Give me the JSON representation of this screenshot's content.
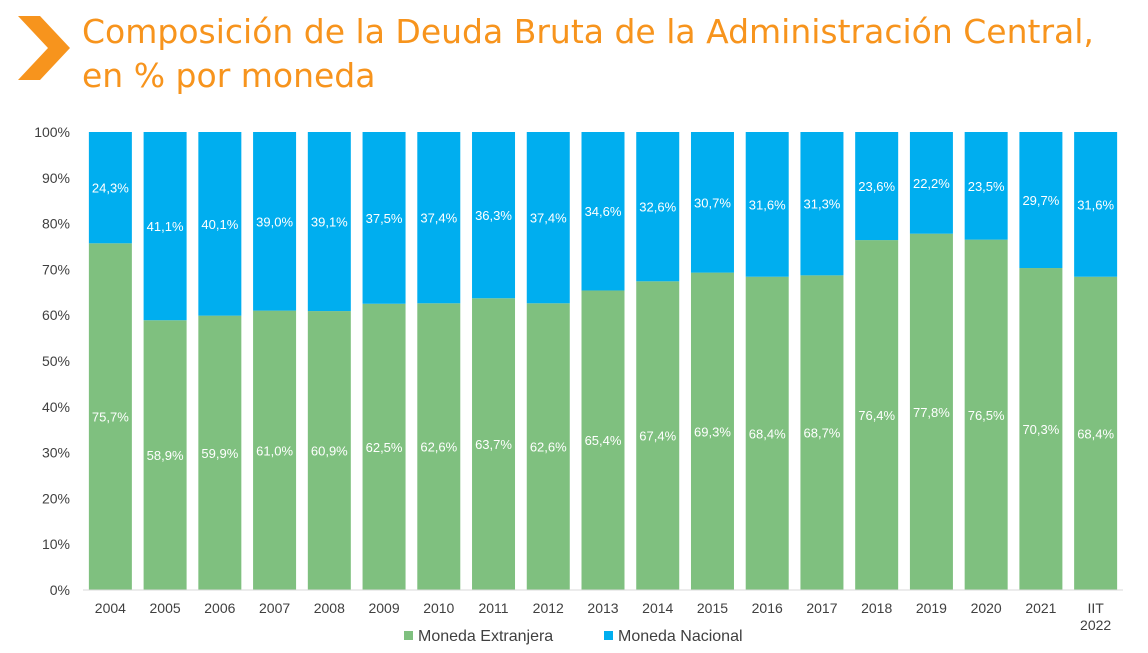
{
  "title": "Composición de la Deuda Bruta de la Administración Central, en % por moneda",
  "icons": {
    "header": "chevron-right-icon"
  },
  "colors": {
    "accent": "#f7941d",
    "extranjera": "#7fc07f",
    "nacional": "#00aeef",
    "text": "#404040"
  },
  "chart_data": {
    "type": "bar",
    "stacked": true,
    "categories": [
      "2004",
      "2005",
      "2006",
      "2007",
      "2008",
      "2009",
      "2010",
      "2011",
      "2012",
      "2013",
      "2014",
      "2015",
      "2016",
      "2017",
      "2018",
      "2019",
      "2020",
      "2021",
      "IIT 2022"
    ],
    "series": [
      {
        "name": "Moneda Extranjera",
        "color": "#7fc07f",
        "values": [
          75.7,
          58.9,
          59.9,
          61.0,
          60.9,
          62.5,
          62.6,
          63.7,
          62.6,
          65.4,
          67.4,
          69.3,
          68.4,
          68.7,
          76.4,
          77.8,
          76.5,
          70.3,
          68.4
        ],
        "labels": [
          "75,7%",
          "58,9%",
          "59,9%",
          "61,0%",
          "60,9%",
          "62,5%",
          "62,6%",
          "63,7%",
          "62,6%",
          "65,4%",
          "67,4%",
          "69,3%",
          "68,4%",
          "68,7%",
          "76,4%",
          "77,8%",
          "76,5%",
          "70,3%",
          "68,4%"
        ]
      },
      {
        "name": "Moneda Nacional",
        "color": "#00aeef",
        "values": [
          24.3,
          41.1,
          40.1,
          39.0,
          39.1,
          37.5,
          37.4,
          36.3,
          37.4,
          34.6,
          32.6,
          30.7,
          31.6,
          31.3,
          23.6,
          22.2,
          23.5,
          29.7,
          31.6
        ],
        "labels": [
          "24,3%",
          "41,1%",
          "40,1%",
          "39,0%",
          "39,1%",
          "37,5%",
          "37,4%",
          "36,3%",
          "37,4%",
          "34,6%",
          "32,6%",
          "30,7%",
          "31,6%",
          "31,3%",
          "23,6%",
          "22,2%",
          "23,5%",
          "29,7%",
          "31,6%"
        ]
      }
    ],
    "ylim": [
      0,
      100
    ],
    "yticks": [
      0,
      10,
      20,
      30,
      40,
      50,
      60,
      70,
      80,
      90,
      100
    ],
    "ytick_labels": [
      "0%",
      "10%",
      "20%",
      "30%",
      "40%",
      "50%",
      "60%",
      "70%",
      "80%",
      "90%",
      "100%"
    ],
    "grid": false,
    "legend": "bottom-center"
  }
}
